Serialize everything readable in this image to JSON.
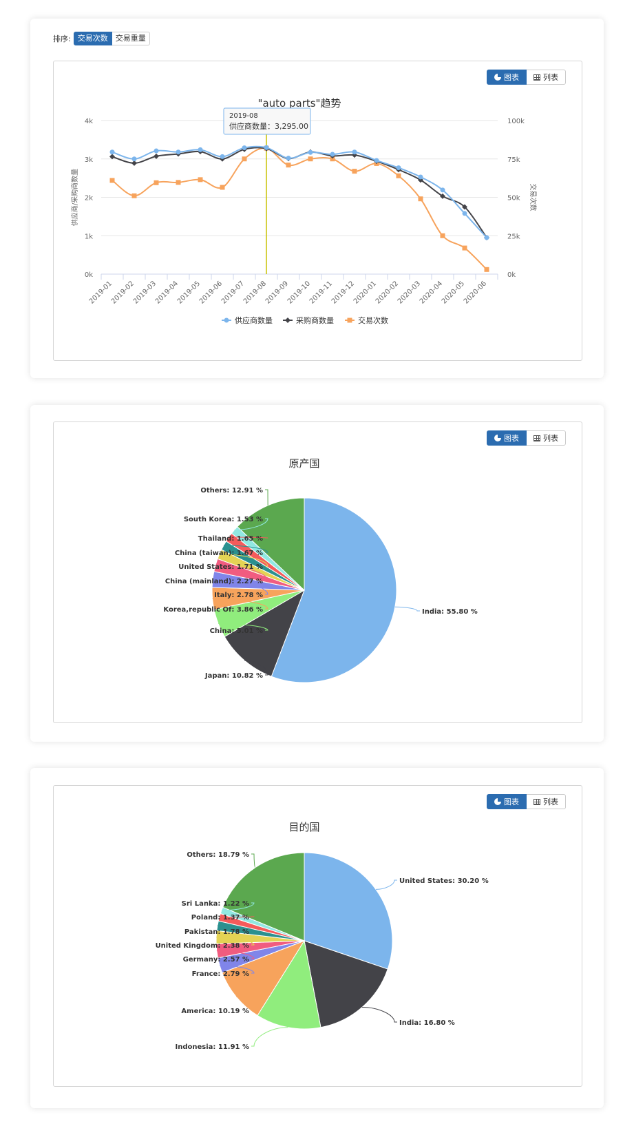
{
  "sort": {
    "label": "排序:",
    "options": [
      "交易次数",
      "交易重量"
    ],
    "active": "交易次数"
  },
  "toggle": {
    "chart_label": "图表",
    "list_label": "列表"
  },
  "colors": {
    "accent": "#2b6cb0",
    "supplier": "#7cb5ec",
    "buyer": "#434348",
    "trade": "#f7a35c",
    "crosshair": "#c9c200"
  },
  "chart_data": [
    {
      "type": "line",
      "title": "\"auto parts\"趋势",
      "x": [
        "2019-01",
        "2019-02",
        "2019-03",
        "2019-04",
        "2019-05",
        "2019-06",
        "2019-07",
        "2019-08",
        "2019-09",
        "2019-10",
        "2019-11",
        "2019-12",
        "2020-01",
        "2020-02",
        "2020-03",
        "2020-04",
        "2020-05",
        "2020-06"
      ],
      "y_left": {
        "label": "供应商/采购商数量",
        "ticks": [
          "0k",
          "1k",
          "2k",
          "3k",
          "4k"
        ],
        "range": [
          0,
          4000
        ]
      },
      "y_right": {
        "label": "交易次数",
        "ticks": [
          "0k",
          "25k",
          "50k",
          "75k",
          "100k"
        ],
        "range": [
          0,
          100000
        ]
      },
      "series": [
        {
          "name": "供应商数量",
          "axis": "left",
          "color": "#7cb5ec",
          "marker": "circle",
          "values": [
            3180,
            3000,
            3210,
            3180,
            3240,
            3060,
            3290,
            3295,
            3020,
            3170,
            3120,
            3180,
            2960,
            2770,
            2530,
            2190,
            1580,
            950
          ]
        },
        {
          "name": "采购商数量",
          "axis": "left",
          "color": "#434348",
          "marker": "diamond",
          "values": [
            3060,
            2890,
            3070,
            3130,
            3190,
            3000,
            3250,
            3270,
            3010,
            3180,
            3080,
            3100,
            2940,
            2720,
            2450,
            2030,
            1750,
            950
          ]
        },
        {
          "name": "交易次数",
          "axis": "right",
          "color": "#f7a35c",
          "marker": "square",
          "values": [
            61000,
            51000,
            59500,
            59700,
            61500,
            56500,
            75000,
            82000,
            71000,
            75000,
            75000,
            67000,
            72000,
            64000,
            49000,
            25000,
            17000,
            3000
          ]
        }
      ],
      "tooltip": {
        "category": "2019-08",
        "series_label": "供应商数量",
        "value_text": "3,295.00"
      },
      "legend": "bottom-center",
      "grid": true
    },
    {
      "type": "pie",
      "title": "原产国",
      "slices": [
        {
          "label": "India",
          "value": 55.8,
          "text": "India: 55.80 %",
          "color": "#7cb5ec"
        },
        {
          "label": "Japan",
          "value": 10.82,
          "text": "Japan: 10.82 %",
          "color": "#434348"
        },
        {
          "label": "China",
          "value": 5.01,
          "text": "China: 5.01 %",
          "color": "#90ed7d"
        },
        {
          "label": "Korea,republic Of",
          "value": 3.86,
          "text": "Korea,republic Of: 3.86 %",
          "color": "#f7a35c"
        },
        {
          "label": "Italy",
          "value": 2.78,
          "text": "Italy: 2.78 %",
          "color": "#8085e9"
        },
        {
          "label": "China (mainland)",
          "value": 2.27,
          "text": "China (mainland): 2.27 %",
          "color": "#f15c80"
        },
        {
          "label": "United States",
          "value": 1.71,
          "text": "United States: 1.71 %",
          "color": "#e4d354"
        },
        {
          "label": "China (taiwan)",
          "value": 1.67,
          "text": "China (taiwan): 1.67 %",
          "color": "#2b908f"
        },
        {
          "label": "Thailand",
          "value": 1.65,
          "text": "Thailand: 1.65 %",
          "color": "#f45b5b"
        },
        {
          "label": "South Korea",
          "value": 1.53,
          "text": "South Korea: 1.53 %",
          "color": "#91e8e1"
        },
        {
          "label": "Others",
          "value": 12.91,
          "text": "Others: 12.91 %",
          "color": "#5ba84f"
        }
      ]
    },
    {
      "type": "pie",
      "title": "目的国",
      "slices": [
        {
          "label": "United States",
          "value": 30.2,
          "text": "United States: 30.20 %",
          "color": "#7cb5ec"
        },
        {
          "label": "India",
          "value": 16.8,
          "text": "India: 16.80 %",
          "color": "#434348"
        },
        {
          "label": "Indonesia",
          "value": 11.91,
          "text": "Indonesia: 11.91 %",
          "color": "#90ed7d"
        },
        {
          "label": "America",
          "value": 10.19,
          "text": "America: 10.19 %",
          "color": "#f7a35c"
        },
        {
          "label": "France",
          "value": 2.79,
          "text": "France: 2.79 %",
          "color": "#8085e9"
        },
        {
          "label": "Germany",
          "value": 2.57,
          "text": "Germany: 2.57 %",
          "color": "#f15c80"
        },
        {
          "label": "United Kingdom",
          "value": 2.38,
          "text": "United Kingdom: 2.38 %",
          "color": "#e4d354"
        },
        {
          "label": "Pakistan",
          "value": 1.78,
          "text": "Pakistan: 1.78 %",
          "color": "#2b908f"
        },
        {
          "label": "Poland",
          "value": 1.37,
          "text": "Poland: 1.37 %",
          "color": "#f45b5b"
        },
        {
          "label": "Sri Lanka",
          "value": 1.22,
          "text": "Sri Lanka: 1.22 %",
          "color": "#91e8e1"
        },
        {
          "label": "Others",
          "value": 18.79,
          "text": "Others: 18.79 %",
          "color": "#5ba84f"
        }
      ]
    }
  ]
}
